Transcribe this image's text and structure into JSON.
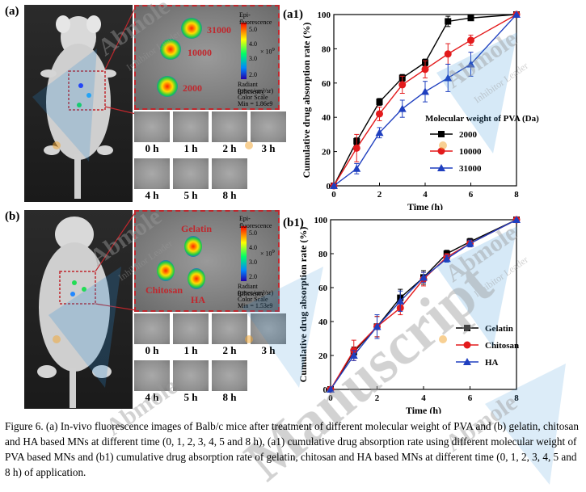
{
  "panel_a": {
    "label": "(a)",
    "zoom_values": [
      "31000",
      "10000",
      "2000"
    ],
    "scale_title": "Epi-fluorescence",
    "scale_ticks": [
      "5.0",
      "4.0",
      "3.0",
      "2.0"
    ],
    "scale_unit": "× 10",
    "scale_exp": "9",
    "scale_sub": "Radiant Efficiency",
    "scale_sub2": "(p/sec/cm²/sr)",
    "scale_sub3": "μW/cm²",
    "scale_sub4": "Color Scale",
    "scale_sub5": "Min = 1.86e9",
    "scale_sub6": "Max = 5.48e9",
    "times": [
      "0 h",
      "1 h",
      "2 h",
      "3 h",
      "4 h",
      "5 h",
      "8 h"
    ]
  },
  "panel_b": {
    "label": "(b)",
    "zoom_labels": [
      "Gelatin",
      "Chitosan",
      "HA"
    ],
    "scale_title": "Epi-fluorescence",
    "scale_ticks": [
      "5.0",
      "4.0",
      "3.0",
      "2.0"
    ],
    "scale_unit": "× 10",
    "scale_exp": "9",
    "scale_sub": "Radiant Efficiency",
    "scale_sub2": "(p/sec/cm²/sr)",
    "scale_sub3": "μW/cm²",
    "scale_sub4": "Color Scale",
    "scale_sub5": "Min = 1.53e9",
    "scale_sub6": "Max = 5.08e9",
    "times": [
      "0 h",
      "1 h",
      "2 h",
      "3 h",
      "4 h",
      "5 h",
      "8 h"
    ]
  },
  "chart_data": [
    {
      "panel": "(a1)",
      "type": "line",
      "xlabel": "Time (h)",
      "ylabel": "Cumulative drug absorption rate (%)",
      "xlim": [
        0,
        8
      ],
      "ylim": [
        0,
        100
      ],
      "xticks": [
        0,
        2,
        4,
        6,
        8
      ],
      "yticks": [
        0,
        20,
        40,
        60,
        80,
        100
      ],
      "legend_title": "Molecular weight of PVA (Da)",
      "legend_position": "right",
      "x": [
        0,
        1,
        2,
        3,
        4,
        5,
        6,
        8
      ],
      "series": [
        {
          "name": "2000",
          "color": "#000000",
          "marker": "square",
          "values": [
            0,
            26,
            49,
            63,
            72,
            96,
            98,
            100
          ],
          "errors": [
            0,
            2,
            2,
            2,
            2,
            3,
            1,
            0
          ]
        },
        {
          "name": "10000",
          "color": "#e31a1c",
          "marker": "circle",
          "values": [
            0,
            22,
            42,
            59,
            68,
            77,
            85,
            100
          ],
          "errors": [
            0,
            8,
            4,
            5,
            5,
            6,
            3,
            0
          ]
        },
        {
          "name": "31000",
          "color": "#1f3fbf",
          "marker": "triangle",
          "values": [
            0,
            10,
            31,
            45,
            55,
            63,
            71,
            100
          ],
          "errors": [
            0,
            3,
            3,
            5,
            6,
            8,
            7,
            0
          ]
        }
      ]
    },
    {
      "panel": "(b1)",
      "type": "line",
      "xlabel": "Time (h)",
      "ylabel": "Cumulative drug absorption rate (%)",
      "xlim": [
        0,
        8
      ],
      "ylim": [
        0,
        100
      ],
      "xticks": [
        0,
        2,
        4,
        6,
        8
      ],
      "yticks": [
        0,
        20,
        40,
        60,
        80,
        100
      ],
      "legend_position": "bottom-right",
      "x": [
        0,
        1,
        2,
        3,
        4,
        5,
        6,
        8
      ],
      "series": [
        {
          "name": "Gelatin",
          "color": "#000000",
          "marker": "square",
          "values": [
            0,
            22,
            37,
            54,
            66,
            80,
            87,
            100
          ],
          "errors": [
            0,
            3,
            6,
            5,
            4,
            2,
            2,
            0
          ]
        },
        {
          "name": "Chitosan",
          "color": "#e31a1c",
          "marker": "circle",
          "values": [
            0,
            23,
            37,
            48,
            65,
            78,
            86,
            100
          ],
          "errors": [
            0,
            6,
            6,
            4,
            4,
            2,
            2,
            0
          ]
        },
        {
          "name": "HA",
          "color": "#1f3fbf",
          "marker": "triangle",
          "values": [
            0,
            20,
            37,
            52,
            66,
            77,
            86,
            100
          ],
          "errors": [
            0,
            3,
            7,
            6,
            3,
            2,
            2,
            0
          ]
        }
      ]
    }
  ],
  "watermarks": [
    "Abmole",
    "Inhibitor Leader",
    "Manuscript"
  ],
  "caption": "Figure 6. (a) In-vivo fluorescence images of Balb/c mice after treatment of different molecular weight of PVA and (b) gelatin, chitosan and HA based MNs at different time (0, 1, 2, 3, 4, 5 and 8 h), (a1) cumulative drug absorption rate using different molecular weight of PVA based MNs and (b1) cumulative drug absorption rate of gelatin, chitosan and HA based MNs at different time (0, 1, 2, 3, 4, 5 and 8 h) of application."
}
